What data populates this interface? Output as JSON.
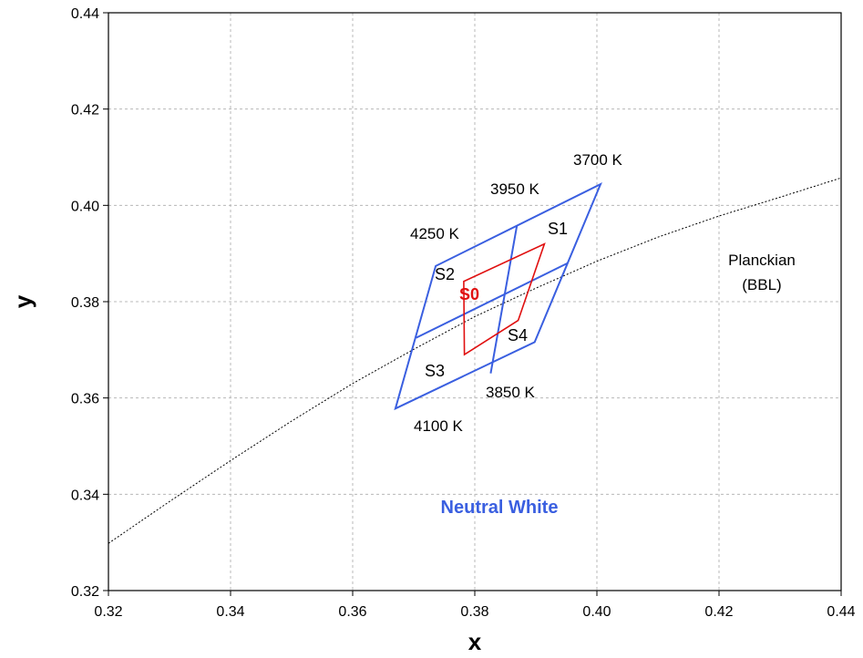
{
  "chart_data": {
    "type": "line",
    "xlabel": "x",
    "ylabel": "y",
    "xlim": [
      0.32,
      0.44
    ],
    "ylim": [
      0.32,
      0.44
    ],
    "xticks": [
      "0.32",
      "0.34",
      "0.36",
      "0.38",
      "0.40",
      "0.42",
      "0.44"
    ],
    "yticks": [
      "0.32",
      "0.34",
      "0.36",
      "0.38",
      "0.40",
      "0.42",
      "0.44"
    ],
    "grid": true,
    "colors": {
      "blue": "#3a5fe0",
      "red": "#e01010",
      "curve": "#000000",
      "grid": "#b8b8b8"
    },
    "planckian": {
      "label_line1": "Planckian",
      "label_line2": "(BBL)",
      "points": [
        [
          0.32,
          0.3298
        ],
        [
          0.33,
          0.3385
        ],
        [
          0.34,
          0.347
        ],
        [
          0.35,
          0.3552
        ],
        [
          0.36,
          0.363
        ],
        [
          0.37,
          0.3701
        ],
        [
          0.38,
          0.3769
        ],
        [
          0.39,
          0.3828
        ],
        [
          0.4,
          0.3884
        ],
        [
          0.41,
          0.3934
        ],
        [
          0.42,
          0.3978
        ],
        [
          0.43,
          0.4017
        ],
        [
          0.44,
          0.4057
        ]
      ]
    },
    "neutral_white": {
      "label": "Neutral White",
      "outer_quad": [
        [
          0.367,
          0.3578
        ],
        [
          0.3898,
          0.3716
        ],
        [
          0.4006,
          0.4044
        ],
        [
          0.3736,
          0.3874
        ]
      ],
      "inner_lines": [
        [
          [
            0.3704,
            0.3725
          ],
          [
            0.3952,
            0.388
          ]
        ],
        [
          [
            0.3826,
            0.3651
          ],
          [
            0.3869,
            0.3958
          ]
        ]
      ]
    },
    "s0_quad": [
      [
        0.3783,
        0.369
      ],
      [
        0.3871,
        0.3761
      ],
      [
        0.3914,
        0.392
      ],
      [
        0.3782,
        0.3842
      ]
    ],
    "cct_labels": [
      "3700 K",
      "3950 K",
      "4250 K",
      "3850 K",
      "4100 K"
    ],
    "region_labels": [
      "S1",
      "S2",
      "S0",
      "S3",
      "S4"
    ]
  }
}
